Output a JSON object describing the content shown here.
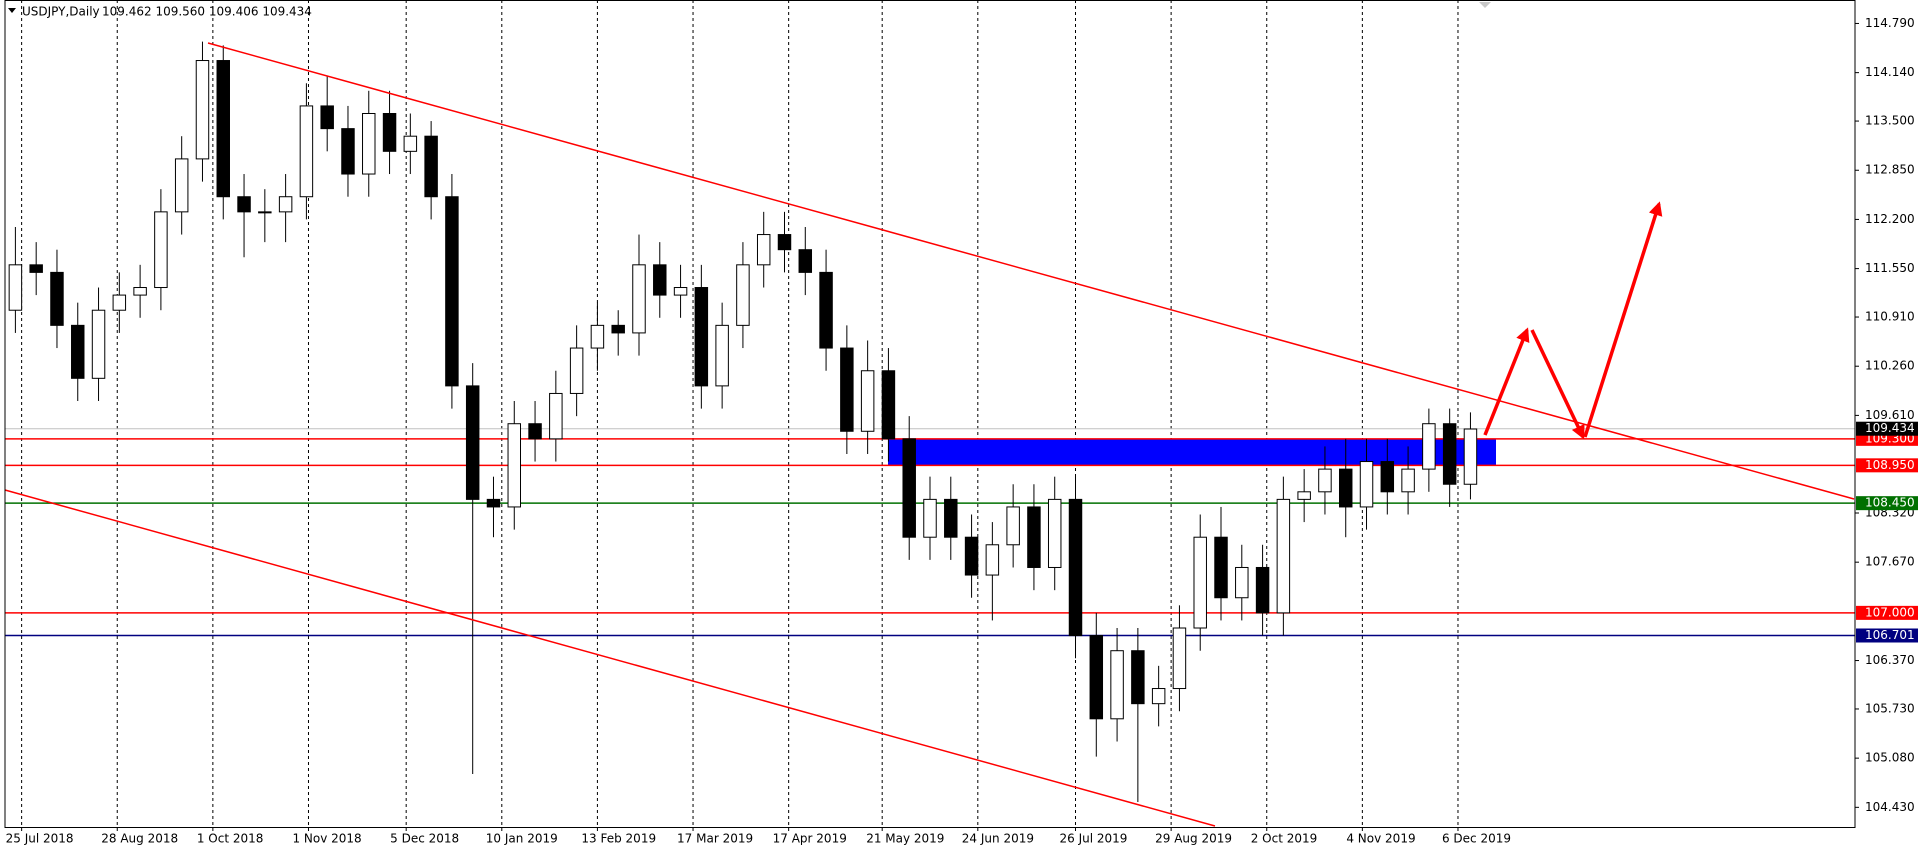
{
  "header": {
    "symbol": "USDJPY,Daily",
    "quote": "109.462 109.560 109.406 109.434"
  },
  "chart_data": {
    "type": "candlestick",
    "xlim": [
      0,
      89
    ],
    "ylim": [
      104.17,
      115.1
    ],
    "xticks": [
      {
        "value": 0.8,
        "label": "25 Jul 2018"
      },
      {
        "value": 5.4,
        "label": "28 Aug 2018"
      },
      {
        "value": 10,
        "label": "1 Oct 2018"
      },
      {
        "value": 14.6,
        "label": "1 Nov 2018"
      },
      {
        "value": 19.3,
        "label": "5 Dec 2018"
      },
      {
        "value": 23.9,
        "label": "10 Jan 2019"
      },
      {
        "value": 28.5,
        "label": "13 Feb 2019"
      },
      {
        "value": 33.1,
        "label": "17 Mar 2019"
      },
      {
        "value": 37.7,
        "label": "17 Apr 2019"
      },
      {
        "value": 42.2,
        "label": "21 May 2019"
      },
      {
        "value": 46.8,
        "label": "24 Jun 2019"
      },
      {
        "value": 51.5,
        "label": "26 Jul 2019"
      },
      {
        "value": 56.1,
        "label": "29 Aug 2019"
      },
      {
        "value": 60.7,
        "label": "2 Oct 2019"
      },
      {
        "value": 65.3,
        "label": "4 Nov 2019"
      },
      {
        "value": 69.9,
        "label": "6 Dec 2019"
      }
    ],
    "yticks": [
      {
        "value": 114.79,
        "label": "114.790"
      },
      {
        "value": 114.14,
        "label": "114.140"
      },
      {
        "value": 113.5,
        "label": "113.500"
      },
      {
        "value": 112.85,
        "label": "112.850"
      },
      {
        "value": 112.2,
        "label": "112.200"
      },
      {
        "value": 111.55,
        "label": "111.550"
      },
      {
        "value": 110.91,
        "label": "110.910"
      },
      {
        "value": 110.26,
        "label": "110.260"
      },
      {
        "value": 109.61,
        "label": "109.610"
      },
      {
        "value": 108.32,
        "label": "108.320"
      },
      {
        "value": 107.67,
        "label": "107.670"
      },
      {
        "value": 106.37,
        "label": "106.370"
      },
      {
        "value": 105.73,
        "label": "105.730"
      },
      {
        "value": 105.08,
        "label": "105.080"
      },
      {
        "value": 104.43,
        "label": "104.430"
      }
    ],
    "grid": true,
    "color": "#000000",
    "open": [
      111.0,
      111.6,
      111.5,
      110.8,
      110.1,
      111.0,
      111.2,
      111.3,
      112.3,
      113.0,
      114.3,
      112.5,
      112.3,
      112.3,
      112.5,
      113.7,
      113.4,
      112.8,
      113.6,
      113.1,
      113.3,
      112.5,
      110.0,
      108.5,
      108.4,
      109.5,
      109.3,
      109.9,
      110.5,
      110.8,
      110.7,
      111.6,
      111.2,
      111.3,
      110.0,
      110.8,
      111.6,
      112.0,
      111.8,
      111.5,
      110.5,
      109.4,
      110.2,
      109.3,
      108.0,
      108.5,
      108.0,
      107.5,
      107.9,
      108.4,
      107.6,
      108.5,
      106.7,
      105.6,
      106.5,
      105.8,
      106.0,
      106.8,
      108.0,
      107.2,
      107.6,
      107.0,
      108.5,
      108.6,
      108.9,
      108.4,
      109.0,
      108.6,
      108.9,
      109.5,
      108.7
    ],
    "high": [
      112.1,
      111.9,
      111.8,
      111.1,
      111.3,
      111.5,
      111.6,
      112.6,
      113.3,
      114.55,
      114.5,
      112.8,
      112.6,
      112.8,
      114.0,
      114.1,
      113.7,
      113.9,
      113.9,
      113.6,
      113.5,
      112.8,
      110.3,
      108.8,
      109.8,
      109.8,
      110.2,
      110.8,
      111.1,
      111.0,
      112.0,
      111.9,
      111.6,
      111.6,
      111.1,
      111.9,
      112.3,
      112.3,
      112.1,
      111.8,
      110.8,
      110.6,
      110.5,
      109.6,
      108.8,
      108.8,
      108.3,
      108.2,
      108.7,
      108.7,
      108.8,
      108.8,
      107.0,
      106.8,
      106.8,
      106.3,
      107.1,
      108.3,
      108.4,
      107.9,
      107.9,
      108.8,
      108.9,
      109.2,
      109.3,
      109.3,
      109.3,
      109.2,
      109.7,
      109.7,
      109.65
    ],
    "low": [
      110.7,
      111.2,
      110.5,
      109.8,
      109.8,
      110.7,
      110.9,
      111.0,
      112.0,
      112.7,
      112.2,
      111.7,
      111.9,
      111.9,
      112.2,
      113.1,
      112.5,
      112.5,
      112.8,
      112.8,
      112.2,
      109.7,
      104.87,
      108.0,
      108.1,
      109.0,
      109.0,
      109.6,
      110.2,
      110.4,
      110.4,
      110.9,
      110.9,
      109.7,
      109.7,
      110.5,
      111.3,
      111.5,
      111.2,
      110.2,
      109.1,
      109.1,
      109.0,
      107.7,
      107.7,
      107.7,
      107.2,
      106.9,
      107.6,
      107.3,
      107.3,
      106.4,
      105.1,
      105.3,
      104.5,
      105.5,
      105.7,
      106.5,
      106.9,
      106.9,
      106.7,
      106.7,
      108.2,
      108.3,
      108.0,
      108.1,
      108.3,
      108.3,
      108.6,
      108.4,
      108.5
    ],
    "close": [
      111.6,
      111.5,
      110.8,
      110.1,
      111.0,
      111.2,
      111.3,
      112.3,
      113.0,
      114.3,
      112.5,
      112.3,
      112.3,
      112.5,
      113.7,
      113.4,
      112.8,
      113.6,
      113.1,
      113.3,
      112.5,
      110.0,
      108.5,
      108.4,
      109.5,
      109.3,
      109.9,
      110.5,
      110.8,
      110.7,
      111.6,
      111.2,
      111.3,
      110.0,
      110.8,
      111.6,
      112.0,
      111.8,
      111.5,
      110.5,
      109.4,
      110.2,
      109.3,
      108.0,
      108.5,
      108.0,
      107.5,
      107.9,
      108.4,
      107.6,
      108.5,
      106.7,
      105.6,
      106.5,
      105.8,
      106.0,
      106.8,
      108.0,
      107.2,
      107.6,
      107.0,
      108.5,
      108.6,
      108.9,
      108.4,
      109.0,
      108.6,
      108.9,
      109.5,
      108.7,
      109.43
    ],
    "hlines": [
      {
        "value": 109.3,
        "label": "109.300",
        "color": "#ff0000"
      },
      {
        "value": 108.95,
        "label": "108.950",
        "color": "#ff0000"
      },
      {
        "value": 108.45,
        "label": "108.450",
        "color": "#007000"
      },
      {
        "value": 107.0,
        "label": "107.000",
        "color": "#ff0000"
      },
      {
        "value": 106.701,
        "label": "106.701",
        "color": "#000080"
      }
    ],
    "last_price": {
      "value": 109.434,
      "label": "109.434",
      "color": "#000000"
    },
    "zone_color": "#0000ff"
  }
}
